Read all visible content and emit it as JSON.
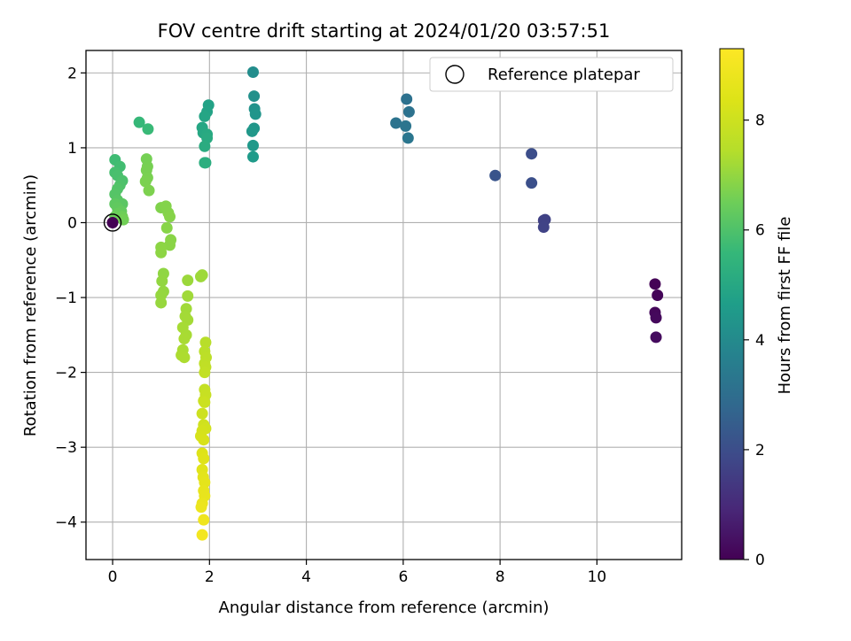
{
  "chart_data": {
    "type": "scatter",
    "title": "FOV centre drift starting at 2024/01/20 03:57:51",
    "xlabel": "Angular distance from reference (arcmin)",
    "ylabel": "Rotation from reference (arcmin)",
    "xlim": [
      -0.55,
      11.75
    ],
    "ylim": [
      -4.5,
      2.3
    ],
    "xticks": [
      0,
      2,
      4,
      6,
      8,
      10
    ],
    "yticks": [
      2,
      1,
      0,
      -1,
      -2,
      -3,
      -4
    ],
    "grid": true,
    "legend": {
      "placement": "top-right",
      "entries": [
        "Reference platepar"
      ]
    },
    "reference_point": {
      "x": 0,
      "y": 0
    },
    "colorbar": {
      "label": "Hours from first FF file",
      "range": [
        0,
        9.3
      ],
      "ticks": [
        0,
        2,
        4,
        6,
        8
      ],
      "colormap": "viridis"
    },
    "series": [
      {
        "points": [
          {
            "x": 11.2,
            "y": -0.82,
            "h": 0.05
          },
          {
            "x": 11.25,
            "y": -0.97,
            "h": 0.1
          },
          {
            "x": 11.2,
            "y": -1.2,
            "h": 0.15
          },
          {
            "x": 11.22,
            "y": -1.27,
            "h": 0.2
          },
          {
            "x": 11.22,
            "y": -1.53,
            "h": 0.25
          },
          {
            "x": 8.9,
            "y": 0.03,
            "h": 1.6
          },
          {
            "x": 8.93,
            "y": 0.04,
            "h": 1.65
          },
          {
            "x": 8.9,
            "y": -0.06,
            "h": 1.7
          },
          {
            "x": 8.65,
            "y": 0.92,
            "h": 2.0
          },
          {
            "x": 8.65,
            "y": 0.53,
            "h": 2.05
          },
          {
            "x": 7.9,
            "y": 0.63,
            "h": 2.2
          },
          {
            "x": 6.07,
            "y": 1.65,
            "h": 3.1
          },
          {
            "x": 6.12,
            "y": 1.48,
            "h": 3.15
          },
          {
            "x": 5.85,
            "y": 1.33,
            "h": 3.2
          },
          {
            "x": 6.05,
            "y": 1.29,
            "h": 3.25
          },
          {
            "x": 6.1,
            "y": 1.13,
            "h": 3.3
          },
          {
            "x": 2.9,
            "y": 2.01,
            "h": 4.1
          },
          {
            "x": 2.92,
            "y": 1.69,
            "h": 4.2
          },
          {
            "x": 2.93,
            "y": 1.52,
            "h": 4.3
          },
          {
            "x": 2.95,
            "y": 1.45,
            "h": 4.35
          },
          {
            "x": 2.92,
            "y": 1.26,
            "h": 4.4
          },
          {
            "x": 2.88,
            "y": 1.22,
            "h": 4.45
          },
          {
            "x": 2.9,
            "y": 1.03,
            "h": 4.5
          },
          {
            "x": 2.9,
            "y": 0.88,
            "h": 4.55
          },
          {
            "x": 1.98,
            "y": 1.57,
            "h": 4.8
          },
          {
            "x": 1.95,
            "y": 1.48,
            "h": 4.85
          },
          {
            "x": 1.9,
            "y": 1.42,
            "h": 4.9
          },
          {
            "x": 1.85,
            "y": 1.27,
            "h": 4.95
          },
          {
            "x": 1.87,
            "y": 1.2,
            "h": 5.0
          },
          {
            "x": 1.95,
            "y": 1.18,
            "h": 5.05
          },
          {
            "x": 1.95,
            "y": 1.13,
            "h": 5.1
          },
          {
            "x": 1.9,
            "y": 1.02,
            "h": 5.15
          },
          {
            "x": 1.92,
            "y": 0.8,
            "h": 5.2
          },
          {
            "x": 1.9,
            "y": 0.8,
            "h": 5.25
          },
          {
            "x": 0.55,
            "y": 1.34,
            "h": 5.6
          },
          {
            "x": 0.73,
            "y": 1.25,
            "h": 5.65
          },
          {
            "x": 0.05,
            "y": 0.84,
            "h": 5.75
          },
          {
            "x": 0.15,
            "y": 0.75,
            "h": 5.8
          },
          {
            "x": 0.05,
            "y": 0.67,
            "h": 5.85
          },
          {
            "x": 0.1,
            "y": 0.63,
            "h": 5.9
          },
          {
            "x": 0.2,
            "y": 0.56,
            "h": 5.95
          },
          {
            "x": 0.15,
            "y": 0.5,
            "h": 6.0
          },
          {
            "x": 0.1,
            "y": 0.45,
            "h": 6.05
          },
          {
            "x": 0.05,
            "y": 0.38,
            "h": 6.1
          },
          {
            "x": 0.1,
            "y": 0.3,
            "h": 6.15
          },
          {
            "x": 0.2,
            "y": 0.25,
            "h": 6.2
          },
          {
            "x": 0.05,
            "y": 0.25,
            "h": 6.25
          },
          {
            "x": 0.1,
            "y": 0.2,
            "h": 6.3
          },
          {
            "x": 0.18,
            "y": 0.15,
            "h": 6.35
          },
          {
            "x": 0.1,
            "y": 0.12,
            "h": 6.4
          },
          {
            "x": 0.05,
            "y": 0.08,
            "h": 6.45
          },
          {
            "x": 0.2,
            "y": 0.08,
            "h": 6.5
          },
          {
            "x": 0.22,
            "y": 0.04,
            "h": 6.55
          },
          {
            "x": 0.0,
            "y": 0.0,
            "h": 0.0
          },
          {
            "x": 0.7,
            "y": 0.85,
            "h": 6.6
          },
          {
            "x": 0.72,
            "y": 0.75,
            "h": 6.62
          },
          {
            "x": 0.7,
            "y": 0.7,
            "h": 6.64
          },
          {
            "x": 0.72,
            "y": 0.6,
            "h": 6.66
          },
          {
            "x": 0.68,
            "y": 0.55,
            "h": 6.68
          },
          {
            "x": 0.75,
            "y": 0.43,
            "h": 6.7
          },
          {
            "x": 1.0,
            "y": 0.2,
            "h": 6.75
          },
          {
            "x": 1.1,
            "y": 0.22,
            "h": 6.78
          },
          {
            "x": 1.15,
            "y": 0.13,
            "h": 6.8
          },
          {
            "x": 1.18,
            "y": 0.08,
            "h": 6.82
          },
          {
            "x": 1.12,
            "y": -0.07,
            "h": 6.84
          },
          {
            "x": 1.2,
            "y": -0.23,
            "h": 6.86
          },
          {
            "x": 1.18,
            "y": -0.3,
            "h": 6.88
          },
          {
            "x": 1.0,
            "y": -0.33,
            "h": 6.9
          },
          {
            "x": 1.0,
            "y": -0.4,
            "h": 6.92
          },
          {
            "x": 1.05,
            "y": -0.68,
            "h": 6.95
          },
          {
            "x": 1.02,
            "y": -0.78,
            "h": 6.98
          },
          {
            "x": 1.05,
            "y": -0.92,
            "h": 7.0
          },
          {
            "x": 1.0,
            "y": -0.97,
            "h": 7.02
          },
          {
            "x": 1.0,
            "y": -1.07,
            "h": 7.05
          },
          {
            "x": 1.55,
            "y": -0.77,
            "h": 7.1
          },
          {
            "x": 1.82,
            "y": -0.72,
            "h": 7.12
          },
          {
            "x": 1.85,
            "y": -0.7,
            "h": 7.14
          },
          {
            "x": 1.55,
            "y": -0.98,
            "h": 7.16
          },
          {
            "x": 1.52,
            "y": -1.15,
            "h": 7.18
          },
          {
            "x": 1.5,
            "y": -1.25,
            "h": 7.2
          },
          {
            "x": 1.55,
            "y": -1.3,
            "h": 7.22
          },
          {
            "x": 1.45,
            "y": -1.4,
            "h": 7.24
          },
          {
            "x": 1.52,
            "y": -1.5,
            "h": 7.26
          },
          {
            "x": 1.48,
            "y": -1.55,
            "h": 7.28
          },
          {
            "x": 1.45,
            "y": -1.7,
            "h": 7.3
          },
          {
            "x": 1.42,
            "y": -1.77,
            "h": 7.32
          },
          {
            "x": 1.48,
            "y": -1.8,
            "h": 7.34
          },
          {
            "x": 1.92,
            "y": -1.6,
            "h": 7.5
          },
          {
            "x": 1.9,
            "y": -1.72,
            "h": 7.55
          },
          {
            "x": 1.93,
            "y": -1.8,
            "h": 7.6
          },
          {
            "x": 1.9,
            "y": -1.88,
            "h": 7.65
          },
          {
            "x": 1.92,
            "y": -1.93,
            "h": 7.7
          },
          {
            "x": 1.9,
            "y": -2.0,
            "h": 7.75
          },
          {
            "x": 1.9,
            "y": -2.23,
            "h": 7.8
          },
          {
            "x": 1.92,
            "y": -2.3,
            "h": 7.85
          },
          {
            "x": 1.88,
            "y": -2.38,
            "h": 7.9
          },
          {
            "x": 1.9,
            "y": -2.4,
            "h": 7.95
          },
          {
            "x": 1.85,
            "y": -2.55,
            "h": 8.0
          },
          {
            "x": 1.88,
            "y": -2.7,
            "h": 8.05
          },
          {
            "x": 1.92,
            "y": -2.75,
            "h": 8.1
          },
          {
            "x": 1.85,
            "y": -2.78,
            "h": 8.15
          },
          {
            "x": 1.82,
            "y": -2.85,
            "h": 8.2
          },
          {
            "x": 1.88,
            "y": -2.9,
            "h": 8.25
          },
          {
            "x": 1.85,
            "y": -3.08,
            "h": 8.4
          },
          {
            "x": 1.88,
            "y": -3.15,
            "h": 8.45
          },
          {
            "x": 1.85,
            "y": -3.3,
            "h": 8.5
          },
          {
            "x": 1.87,
            "y": -3.4,
            "h": 8.55
          },
          {
            "x": 1.9,
            "y": -3.47,
            "h": 8.6
          },
          {
            "x": 1.88,
            "y": -3.58,
            "h": 8.65
          },
          {
            "x": 1.9,
            "y": -3.65,
            "h": 8.7
          },
          {
            "x": 1.85,
            "y": -3.75,
            "h": 8.75
          },
          {
            "x": 1.83,
            "y": -3.8,
            "h": 8.8
          },
          {
            "x": 1.88,
            "y": -3.97,
            "h": 8.9
          },
          {
            "x": 1.85,
            "y": -4.17,
            "h": 9.0
          }
        ]
      }
    ]
  }
}
